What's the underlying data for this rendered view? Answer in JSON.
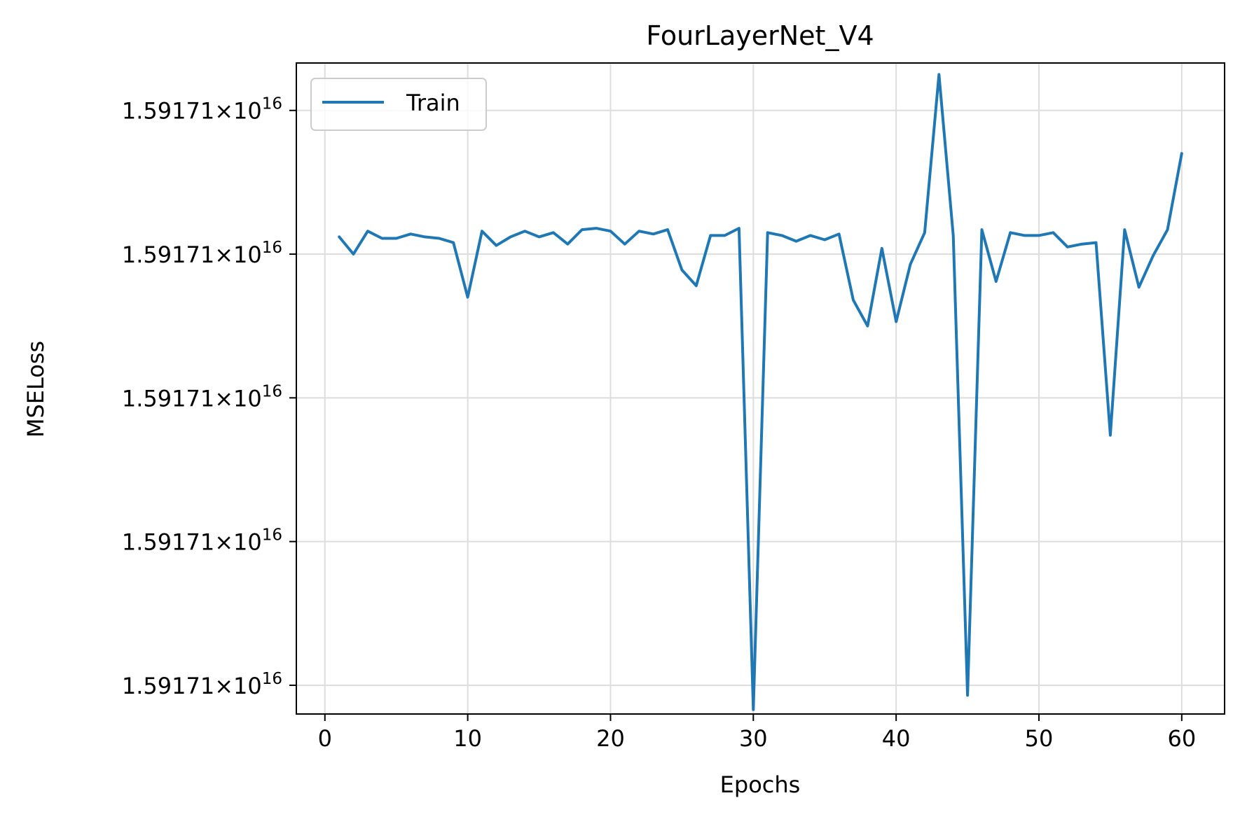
{
  "chart_data": {
    "type": "line",
    "title": "FourLayerNet_V4",
    "xlabel": "Epochs",
    "ylabel": "MSELoss",
    "xlim": [
      -2,
      63
    ],
    "xticks": [
      0,
      10,
      20,
      30,
      40,
      50,
      60
    ],
    "xtick_labels": [
      "0",
      "10",
      "20",
      "30",
      "40",
      "50",
      "60"
    ],
    "ylim": [
      -0.2,
      4.33
    ],
    "yticks": [
      0,
      1,
      2,
      3,
      4
    ],
    "ytick_labels": [
      {
        "mantissa": "1.59171",
        "exponent": "16"
      },
      {
        "mantissa": "1.59171",
        "exponent": "16"
      },
      {
        "mantissa": "1.59171",
        "exponent": "16"
      },
      {
        "mantissa": "1.59171",
        "exponent": "16"
      },
      {
        "mantissa": "1.59171",
        "exponent": "16"
      }
    ],
    "grid": true,
    "legend_position": "upper-left",
    "line_color": "#1f77b4",
    "series": [
      {
        "name": "Train",
        "x": [
          1,
          2,
          3,
          4,
          5,
          6,
          7,
          8,
          9,
          10,
          11,
          12,
          13,
          14,
          15,
          16,
          17,
          18,
          19,
          20,
          21,
          22,
          23,
          24,
          25,
          26,
          27,
          28,
          29,
          30,
          31,
          32,
          33,
          34,
          35,
          36,
          37,
          38,
          39,
          40,
          41,
          42,
          43,
          44,
          45,
          46,
          47,
          48,
          49,
          50,
          51,
          52,
          53,
          54,
          55,
          56,
          57,
          58,
          59,
          60
        ],
        "y": [
          3.12,
          3.0,
          3.16,
          3.11,
          3.11,
          3.14,
          3.12,
          3.11,
          3.08,
          2.7,
          3.16,
          3.06,
          3.12,
          3.16,
          3.12,
          3.15,
          3.07,
          3.17,
          3.18,
          3.16,
          3.07,
          3.16,
          3.14,
          3.17,
          2.89,
          2.78,
          3.13,
          3.13,
          3.18,
          -0.17,
          3.15,
          3.13,
          3.09,
          3.13,
          3.1,
          3.14,
          2.68,
          2.5,
          3.04,
          2.53,
          2.93,
          3.15,
          4.25,
          3.13,
          -0.07,
          3.17,
          2.81,
          3.15,
          3.13,
          3.13,
          3.15,
          3.05,
          3.07,
          3.08,
          1.74,
          3.17,
          2.77,
          2.99,
          3.17,
          3.7
        ]
      }
    ]
  }
}
